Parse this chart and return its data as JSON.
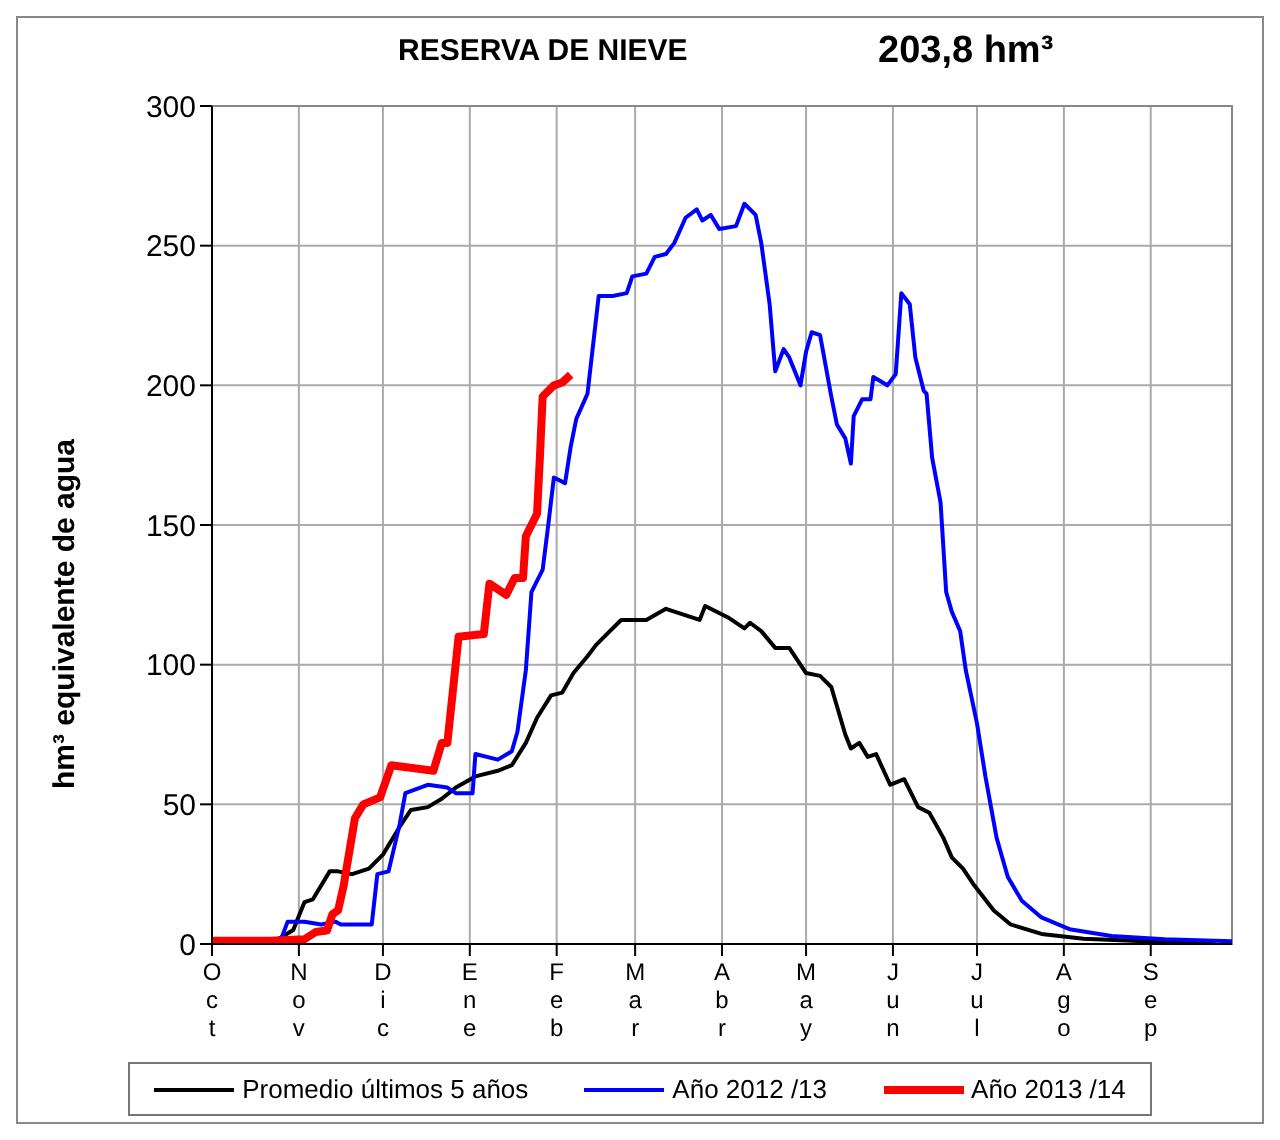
{
  "chart_data": {
    "type": "line",
    "title": "RESERVA DE NIEVE",
    "subtitle": "203,8 hm³",
    "ylabel": "hm³ equivalente de agua",
    "xlim": [
      "2012-10-01",
      "2013-09-30"
    ],
    "xticks": [
      {
        "value": "2012-10-01",
        "label": "Oct"
      },
      {
        "value": "2012-11-01",
        "label": "Nov"
      },
      {
        "value": "2012-12-01",
        "label": "Dic"
      },
      {
        "value": "2013-01-01",
        "label": "Ene"
      },
      {
        "value": "2013-02-01",
        "label": "Feb"
      },
      {
        "value": "2013-03-01",
        "label": "Mar"
      },
      {
        "value": "2013-04-01",
        "label": "Abr"
      },
      {
        "value": "2013-05-01",
        "label": "May"
      },
      {
        "value": "2013-06-01",
        "label": "Jun"
      },
      {
        "value": "2013-07-01",
        "label": "Jul"
      },
      {
        "value": "2013-08-01",
        "label": "Ago"
      },
      {
        "value": "2013-09-01",
        "label": "Sep"
      }
    ],
    "ylim": [
      0,
      300
    ],
    "yticks": [
      0,
      50,
      100,
      150,
      200,
      250,
      300
    ],
    "grid": true,
    "legend": "bottom",
    "marker": "none",
    "line_style": "solid",
    "series": [
      {
        "name": "Promedio últimos 5 años",
        "color": "#000000",
        "x": [
          "2012-10-01",
          "2012-10-20",
          "2012-10-25",
          "2012-10-30",
          "2012-11-03",
          "2012-11-06",
          "2012-11-12",
          "2012-11-15",
          "2012-11-20",
          "2012-11-26",
          "2012-12-01",
          "2012-12-07",
          "2012-12-11",
          "2012-12-17",
          "2012-12-22",
          "2012-12-27",
          "2013-01-03",
          "2013-01-11",
          "2013-01-16",
          "2013-01-21",
          "2013-01-25",
          "2013-01-30",
          "2013-02-03",
          "2013-02-07",
          "2013-02-12",
          "2013-02-15",
          "2013-02-19",
          "2013-02-24",
          "2013-03-05",
          "2013-03-12",
          "2013-03-18",
          "2013-03-24",
          "2013-03-26",
          "2013-04-03",
          "2013-04-09",
          "2013-04-11",
          "2013-04-15",
          "2013-04-20",
          "2013-04-25",
          "2013-05-01",
          "2013-05-06",
          "2013-05-10",
          "2013-05-15",
          "2013-05-17",
          "2013-05-20",
          "2013-05-23",
          "2013-05-26",
          "2013-05-31",
          "2013-06-05",
          "2013-06-10",
          "2013-06-14",
          "2013-06-19",
          "2013-06-22",
          "2013-06-26",
          "2013-06-30",
          "2013-07-07",
          "2013-07-13",
          "2013-07-24",
          "2013-08-08",
          "2013-09-06",
          "2013-09-24"
        ],
        "values": [
          0,
          0,
          2,
          5,
          15,
          16,
          26,
          26,
          25,
          27,
          32,
          42,
          48,
          49,
          52,
          56,
          60,
          62,
          64,
          72,
          81,
          89,
          90,
          97,
          103,
          107,
          111,
          116,
          116,
          120,
          118,
          116,
          121,
          117,
          113,
          115,
          112,
          106,
          106,
          97,
          96,
          92,
          75,
          70,
          72,
          67,
          68,
          57,
          59,
          49,
          47,
          38,
          31,
          27,
          21,
          12,
          7,
          3.6,
          1.9,
          0.7,
          0
        ]
      },
      {
        "name": "Año 2012 /13",
        "color": "#0000ff",
        "x": [
          "2012-10-01",
          "2012-10-25",
          "2012-10-28",
          "2012-11-03",
          "2012-11-09",
          "2012-11-14",
          "2012-11-16",
          "2012-11-27",
          "2012-11-29",
          "2012-12-03",
          "2012-12-07",
          "2012-12-09",
          "2012-12-17",
          "2012-12-24",
          "2012-12-27",
          "2013-01-02",
          "2013-01-03",
          "2013-01-11",
          "2013-01-16",
          "2013-01-18",
          "2013-01-21",
          "2013-01-23",
          "2013-01-27",
          "2013-01-29",
          "2013-01-31",
          "2013-02-04",
          "2013-02-06",
          "2013-02-08",
          "2013-02-12",
          "2013-02-16",
          "2013-02-21",
          "2013-02-26",
          "2013-02-28",
          "2013-03-05",
          "2013-03-08",
          "2013-03-12",
          "2013-03-15",
          "2013-03-19",
          "2013-03-23",
          "2013-03-25",
          "2013-03-28",
          "2013-03-31",
          "2013-04-06",
          "2013-04-09",
          "2013-04-13",
          "2013-04-15",
          "2013-04-18",
          "2013-04-20",
          "2013-04-23",
          "2013-04-25",
          "2013-04-29",
          "2013-05-01",
          "2013-05-03",
          "2013-05-06",
          "2013-05-10",
          "2013-05-12",
          "2013-05-15",
          "2013-05-17",
          "2013-05-18",
          "2013-05-21",
          "2013-05-24",
          "2013-05-25",
          "2013-05-30",
          "2013-06-02",
          "2013-06-04",
          "2013-06-07",
          "2013-06-09",
          "2013-06-12",
          "2013-06-13",
          "2013-06-15",
          "2013-06-18",
          "2013-06-20",
          "2013-06-22",
          "2013-06-25",
          "2013-06-27",
          "2013-07-01",
          "2013-07-04",
          "2013-07-08",
          "2013-07-12",
          "2013-07-17",
          "2013-07-24",
          "2013-08-03",
          "2013-08-18",
          "2013-09-06",
          "2013-09-30"
        ],
        "values": [
          0,
          0,
          8,
          8,
          7,
          8,
          7,
          7,
          25,
          26,
          43,
          54,
          57,
          56,
          54,
          54,
          68,
          66,
          69,
          76,
          98,
          126,
          134,
          150,
          167,
          165,
          178,
          188,
          197,
          232,
          232,
          233,
          239,
          240,
          246,
          247,
          251,
          260,
          263,
          259,
          261,
          256,
          257,
          265,
          261,
          251,
          229,
          205,
          213,
          210,
          200,
          212,
          219,
          218,
          196,
          186,
          181,
          172,
          189,
          195,
          195,
          203,
          200,
          204,
          233,
          229,
          210,
          198,
          197,
          174,
          158,
          126,
          119,
          112,
          98,
          79,
          60,
          38,
          24,
          15.5,
          9.5,
          5.3,
          2.9,
          1.7,
          1
        ]
      },
      {
        "name": "Año 2013 /14",
        "color": "#ff0000",
        "x": [
          "2012-10-01",
          "2012-10-22",
          "2012-11-03",
          "2012-11-07",
          "2012-11-11",
          "2012-11-13",
          "2012-11-15",
          "2012-11-17",
          "2012-11-21",
          "2012-11-24",
          "2012-11-30",
          "2012-12-04",
          "2012-12-19",
          "2012-12-22",
          "2012-12-24",
          "2012-12-28",
          "2013-01-06",
          "2013-01-08",
          "2013-01-14",
          "2013-01-17",
          "2013-01-20",
          "2013-01-21",
          "2013-01-25",
          "2013-01-26",
          "2013-01-27",
          "2013-01-31",
          "2013-02-03",
          "2013-02-06"
        ],
        "values": [
          1.2,
          1.2,
          1.7,
          4.3,
          4.8,
          10.7,
          12,
          21,
          45,
          50,
          52.5,
          64,
          62,
          72,
          72,
          110,
          111,
          129,
          125,
          131,
          131,
          146,
          154,
          174,
          196,
          200,
          201,
          203.8
        ]
      }
    ]
  }
}
